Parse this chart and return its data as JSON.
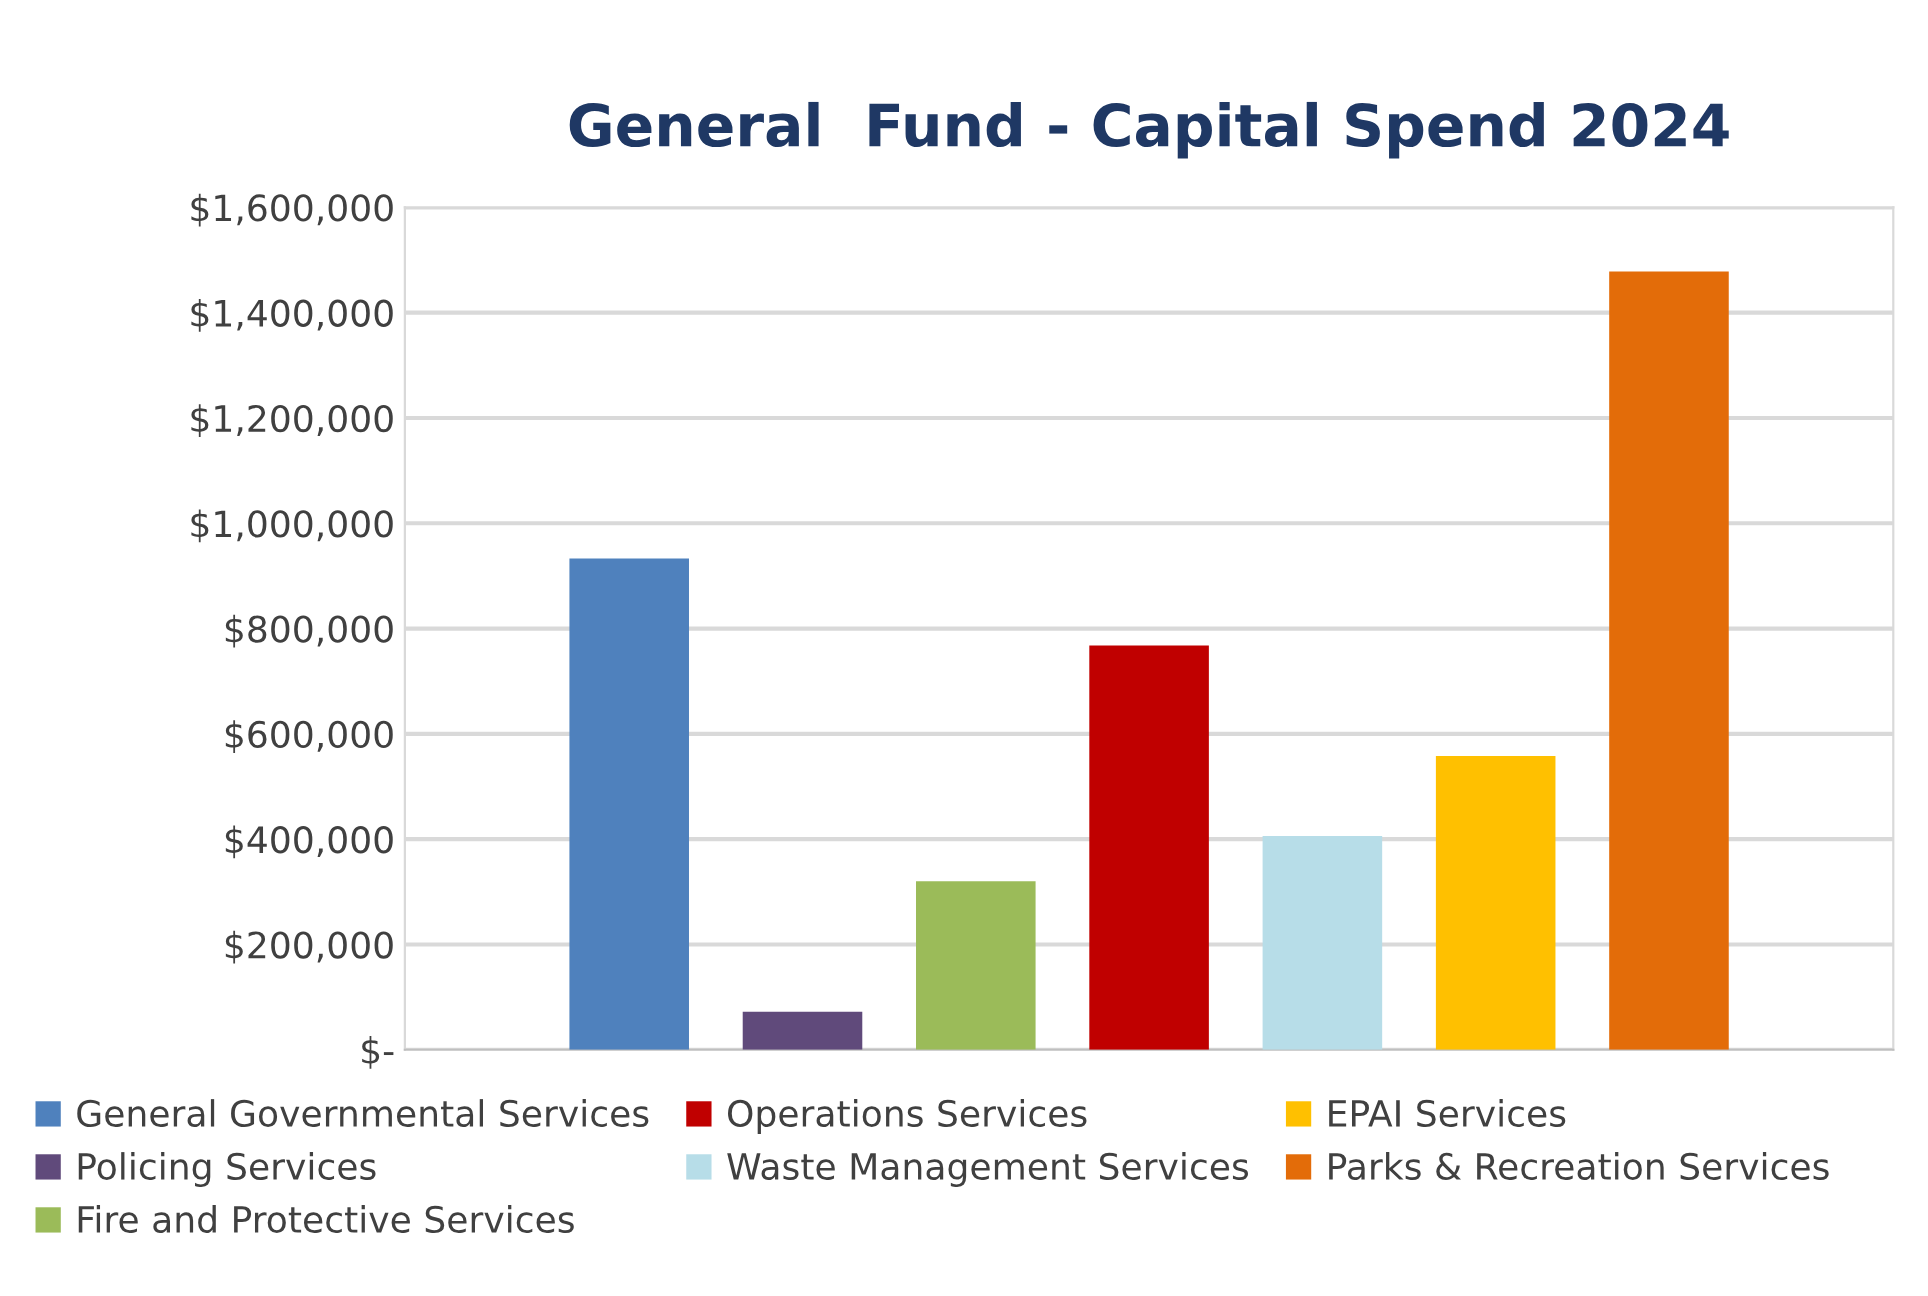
{
  "chart_data": {
    "type": "bar",
    "title": "General  Fund - Capital Spend 2024",
    "categories": [
      null
    ],
    "series": [
      {
        "name": "General Governmental Services",
        "color": "#4f81bd",
        "values": [
          933000
        ]
      },
      {
        "name": "Policing Services",
        "color": "#604a7b",
        "values": [
          72000
        ]
      },
      {
        "name": "Fire and Protective Services",
        "color": "#9bbb59",
        "values": [
          320000
        ]
      },
      {
        "name": "Operations Services",
        "color": "#c00000",
        "values": [
          768000
        ]
      },
      {
        "name": "Waste Management Services",
        "color": "#b7dde8",
        "values": [
          406000
        ]
      },
      {
        "name": "EPAI Services",
        "color": "#ffc000",
        "values": [
          558000
        ]
      },
      {
        "name": "Parks & Recreation Services",
        "color": "#e36c09",
        "values": [
          1478000
        ]
      }
    ],
    "ylim": [
      0,
      1600000
    ],
    "yticks": [
      {
        "value": 0,
        "label": "$-"
      },
      {
        "value": 200000,
        "label": "$200,000"
      },
      {
        "value": 400000,
        "label": "$400,000"
      },
      {
        "value": 600000,
        "label": "$600,000"
      },
      {
        "value": 800000,
        "label": "$800,000"
      },
      {
        "value": 1000000,
        "label": "$1,000,000"
      },
      {
        "value": 1200000,
        "label": "$1,200,000"
      },
      {
        "value": 1400000,
        "label": "$1,400,000"
      },
      {
        "value": 1600000,
        "label": "$1,600,000"
      }
    ],
    "grid": "y",
    "legend": "bottom"
  }
}
